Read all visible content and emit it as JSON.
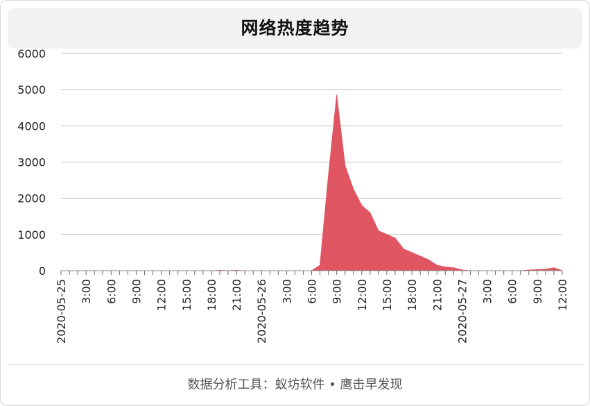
{
  "title": "网络热度趋势",
  "footer": "数据分析工具：蚁坊软件 • 鹰击早发现",
  "colors": {
    "area_fill": "#e05562",
    "grid": "#bdbdbd",
    "axis_text": "#222222"
  },
  "chart_data": {
    "type": "area",
    "title": "网络热度趋势",
    "xlabel": "",
    "ylabel": "",
    "ylim": [
      0,
      6000
    ],
    "yticks": [
      0,
      1000,
      2000,
      3000,
      4000,
      5000,
      6000
    ],
    "grid": true,
    "legend": "none",
    "x_tick_labels": [
      "2020-05-25",
      "3:00",
      "6:00",
      "9:00",
      "12:00",
      "15:00",
      "18:00",
      "21:00",
      "2020-05-26",
      "3:00",
      "6:00",
      "9:00",
      "12:00",
      "15:00",
      "18:00",
      "21:00",
      "2020-05-27",
      "3:00",
      "6:00",
      "9:00",
      "12:00"
    ],
    "x_range_hours": [
      0,
      60
    ],
    "series": [
      {
        "x_hours": [
          0,
          1,
          2,
          3,
          4,
          5,
          6,
          7,
          8,
          9,
          10,
          11,
          12,
          13,
          14,
          15,
          16,
          17,
          18,
          19,
          20,
          21,
          22,
          23,
          24,
          25,
          26,
          27,
          28,
          29,
          30,
          31,
          32,
          33,
          34,
          35,
          36,
          37,
          38,
          39,
          40,
          41,
          42,
          43,
          44,
          45,
          46,
          47,
          48,
          49,
          50,
          51,
          52,
          53,
          54,
          55,
          56,
          57,
          58,
          59,
          60
        ],
        "values": [
          0,
          0,
          0,
          0,
          0,
          0,
          0,
          0,
          0,
          0,
          0,
          0,
          0,
          0,
          0,
          0,
          0,
          0,
          0,
          10,
          0,
          10,
          0,
          0,
          0,
          0,
          0,
          0,
          0,
          0,
          0,
          150,
          2600,
          4850,
          2900,
          2250,
          1800,
          1600,
          1100,
          1000,
          900,
          600,
          500,
          400,
          300,
          150,
          100,
          80,
          20,
          0,
          0,
          0,
          0,
          0,
          0,
          0,
          20,
          30,
          40,
          80,
          0
        ]
      }
    ]
  }
}
